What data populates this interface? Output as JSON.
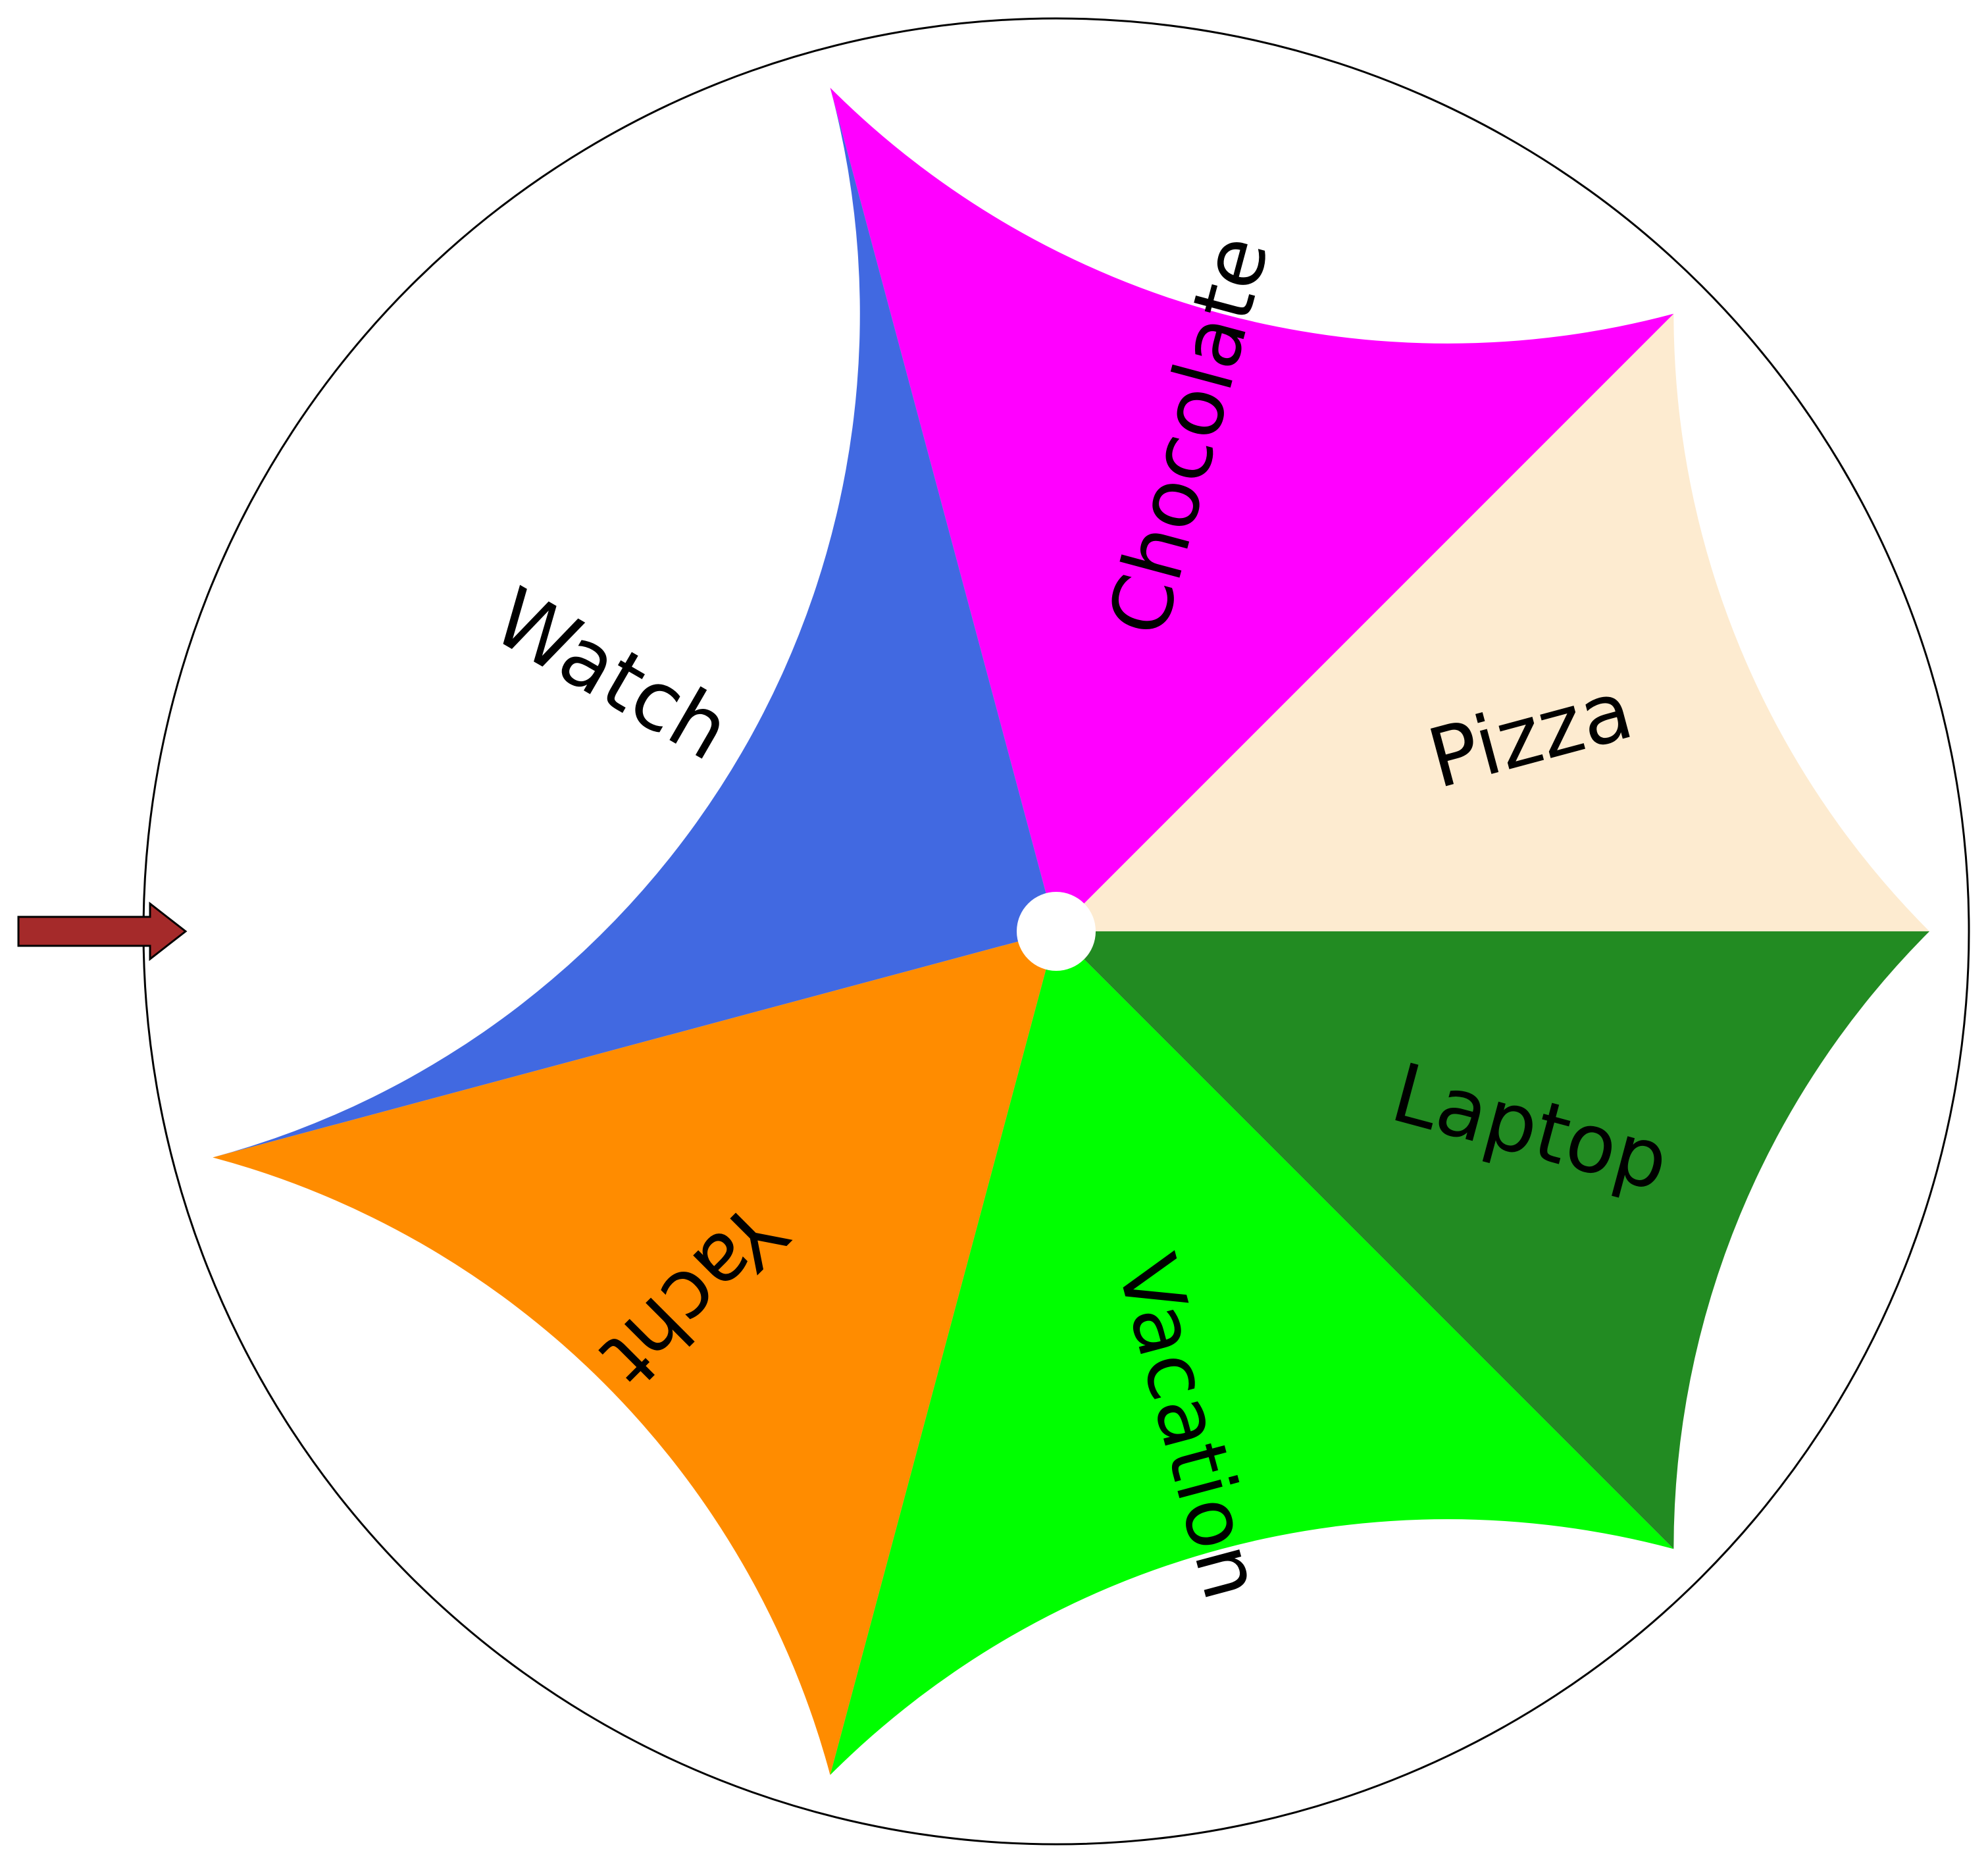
{
  "wheel": {
    "segments": [
      {
        "label": "Pizza",
        "color": "#FDEBD0"
      },
      {
        "label": "Chocolate",
        "color": "#FF00FF"
      },
      {
        "label": "Watch",
        "color": "#4169E1"
      },
      {
        "label": "Yacht",
        "color": "#FF8C00"
      },
      {
        "label": "Vacation",
        "color": "#00FF00"
      },
      {
        "label": "Laptop",
        "color": "#228B22"
      }
    ],
    "pointer_color": "#A52A2A",
    "hub_color": "#FFFFFF",
    "rim_color": "#FFFFFF"
  }
}
